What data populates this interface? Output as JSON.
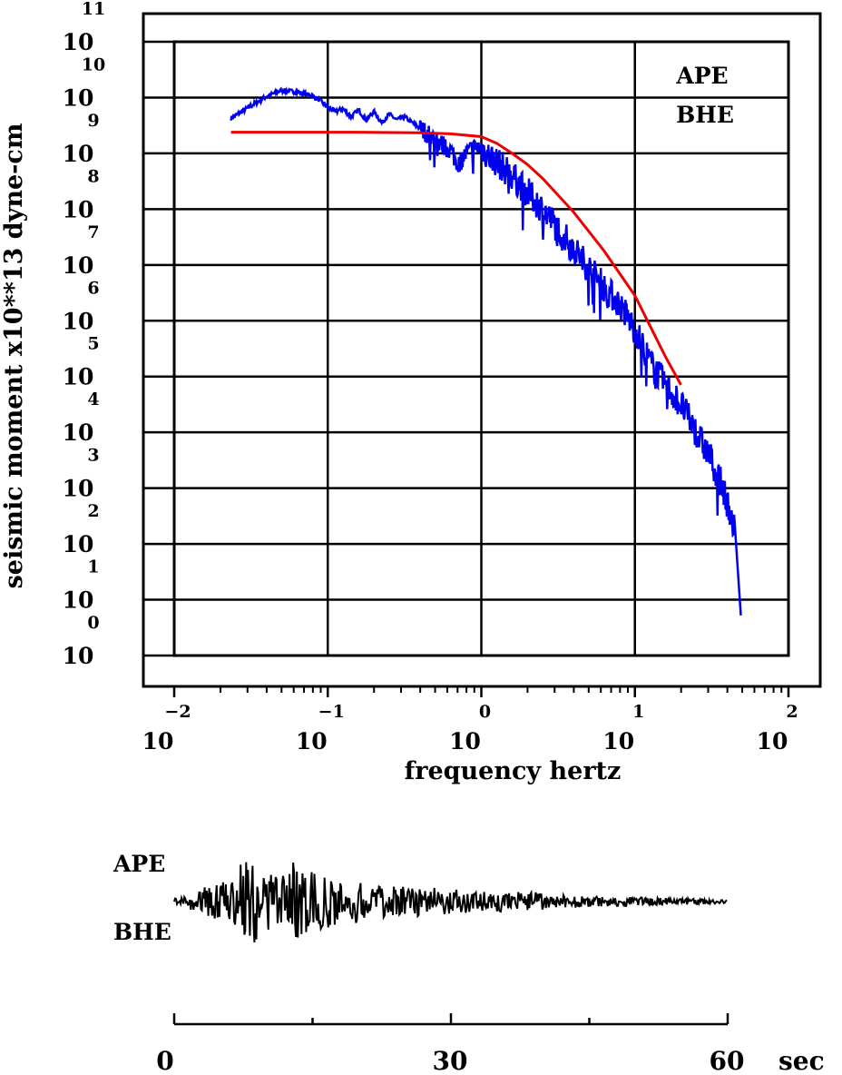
{
  "chart_data": [
    {
      "type": "line",
      "title": "",
      "xlabel": "frequency  hertz",
      "ylabel": "seismic moment x10**13 dyne-cm",
      "x_scale": "log",
      "y_scale": "log",
      "xlim_log10": [
        -2,
        2
      ],
      "ylim_log10": [
        0,
        11
      ],
      "x_ticks": [
        {
          "base": "10",
          "exp": "−2"
        },
        {
          "base": "10",
          "exp": "−1"
        },
        {
          "base": "10",
          "exp": "0"
        },
        {
          "base": "10",
          "exp": "1"
        },
        {
          "base": "10",
          "exp": "2"
        }
      ],
      "y_ticks": [
        {
          "base": "10",
          "exp": "0"
        },
        {
          "base": "10",
          "exp": "1"
        },
        {
          "base": "10",
          "exp": "2"
        },
        {
          "base": "10",
          "exp": "3"
        },
        {
          "base": "10",
          "exp": "4"
        },
        {
          "base": "10",
          "exp": "5"
        },
        {
          "base": "10",
          "exp": "6"
        },
        {
          "base": "10",
          "exp": "7"
        },
        {
          "base": "10",
          "exp": "8"
        },
        {
          "base": "10",
          "exp": "9"
        },
        {
          "base": "10",
          "exp": "10"
        },
        {
          "base": "10",
          "exp": "11"
        }
      ],
      "grid": true,
      "legend": {
        "placement": "top-right",
        "lines": [
          "APE",
          "BHE"
        ]
      },
      "series": [
        {
          "color": "#0000ee",
          "log10_f": [
            -1.63,
            -1.5,
            -1.4,
            -1.3,
            -1.2,
            -1.1,
            -1.05,
            -1.0,
            -0.95,
            -0.9,
            -0.85,
            -0.8,
            -0.75,
            -0.7,
            -0.65,
            -0.6,
            -0.55,
            -0.5,
            -0.45,
            -0.4,
            -0.35,
            -0.3,
            -0.25,
            -0.2,
            -0.15,
            -0.1,
            -0.05,
            0.0,
            0.05,
            0.1,
            0.2,
            0.3,
            0.4,
            0.5,
            0.6,
            0.7,
            0.8,
            0.9,
            1.0,
            1.1,
            1.2,
            1.3,
            1.4,
            1.5,
            1.58,
            1.62,
            1.66,
            1.69
          ],
          "log10_M": [
            9.63,
            9.85,
            10.02,
            10.13,
            10.1,
            10.03,
            9.95,
            9.82,
            9.75,
            9.8,
            9.65,
            9.78,
            9.6,
            9.75,
            9.55,
            9.7,
            9.6,
            9.65,
            9.55,
            9.45,
            9.35,
            9.25,
            9.15,
            9.05,
            8.8,
            9.0,
            9.1,
            9.1,
            8.95,
            8.85,
            8.6,
            8.3,
            8.0,
            7.65,
            7.3,
            6.95,
            6.6,
            6.3,
            5.85,
            5.25,
            4.85,
            4.5,
            4.0,
            3.5,
            2.95,
            2.55,
            2.1,
            0.72
          ]
        },
        {
          "color": "#ee0000",
          "log10_f": [
            -1.63,
            -1.2,
            -0.8,
            -0.4,
            -0.2,
            0.0,
            0.1,
            0.2,
            0.3,
            0.4,
            0.5,
            0.6,
            0.7,
            0.8,
            0.9,
            1.0,
            1.1,
            1.2,
            1.3
          ],
          "log10_M": [
            9.38,
            9.38,
            9.38,
            9.37,
            9.35,
            9.3,
            9.18,
            9.0,
            8.8,
            8.55,
            8.25,
            7.95,
            7.6,
            7.25,
            6.85,
            6.45,
            5.9,
            5.35,
            4.85
          ]
        }
      ]
    },
    {
      "type": "line",
      "title": "",
      "xlabel": "",
      "ylabel": "",
      "legend": {
        "placement": "left",
        "lines": [
          "APE",
          "BHE"
        ]
      },
      "x_unit": "sec",
      "xlim": [
        0,
        60
      ],
      "x_ticks": [
        "0",
        "30",
        "60"
      ],
      "series": [
        {
          "color": "#000000",
          "duration_sec": 60
        }
      ]
    }
  ]
}
